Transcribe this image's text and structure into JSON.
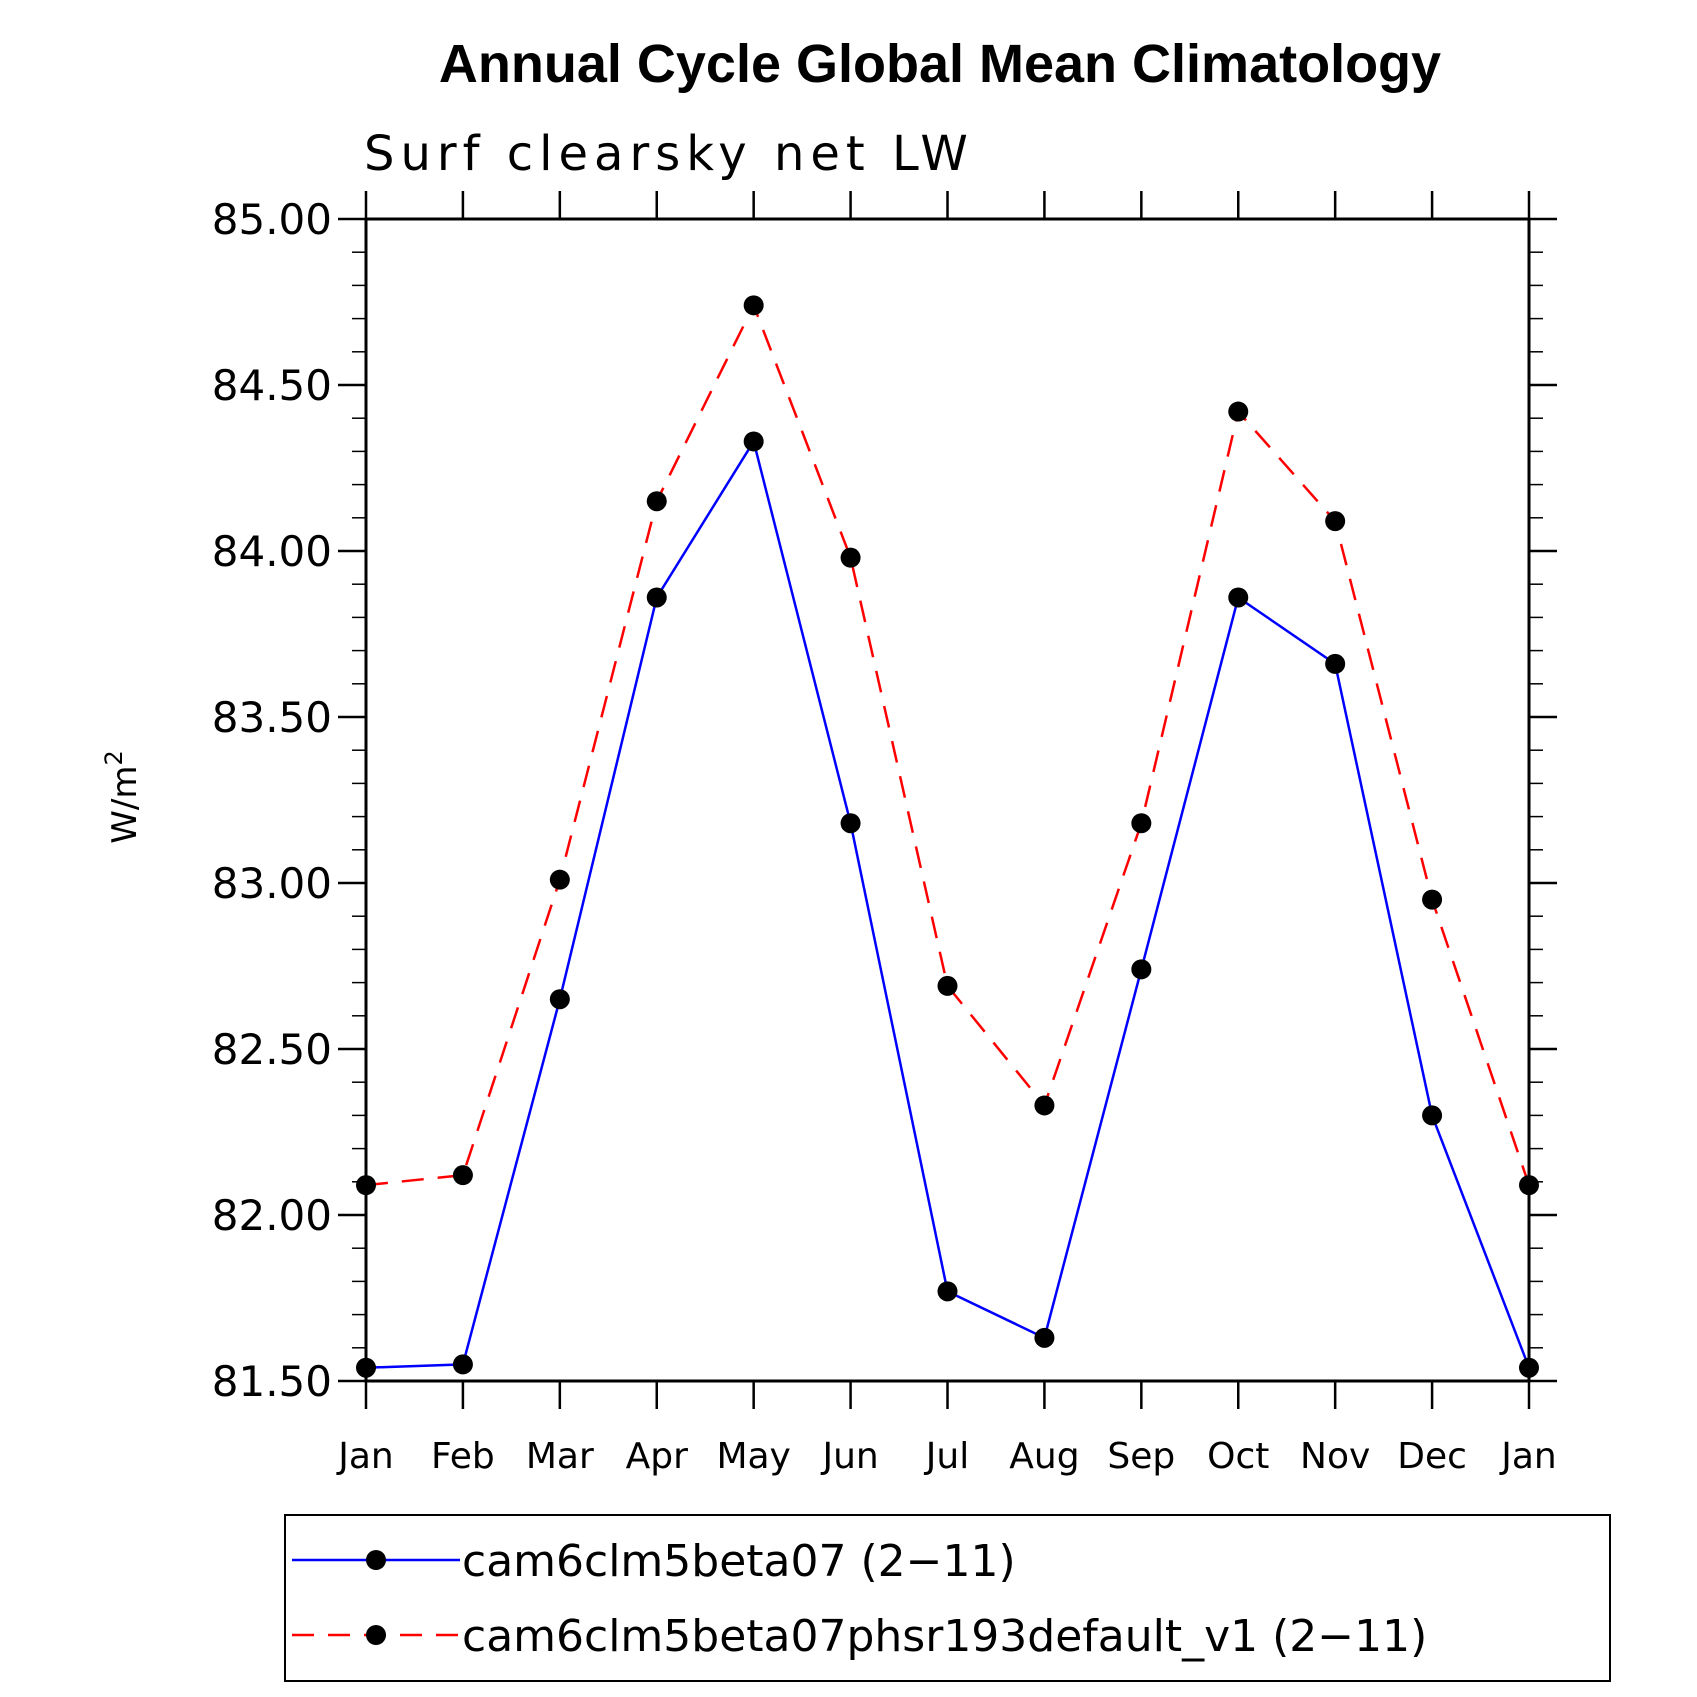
{
  "chart_data": {
    "type": "line",
    "title": "Annual Cycle Global Mean Climatology",
    "subtitle": "Surf clearsky net LW",
    "ylabel": "W/m",
    "ylabel_superscript": "2",
    "xlabel": "",
    "categories": [
      "Jan",
      "Feb",
      "Mar",
      "Apr",
      "May",
      "Jun",
      "Jul",
      "Aug",
      "Sep",
      "Oct",
      "Nov",
      "Dec",
      "Jan"
    ],
    "ylim": [
      81.5,
      85.0
    ],
    "yticks": [
      81.5,
      82.0,
      82.5,
      83.0,
      83.5,
      84.0,
      84.5,
      85.0
    ],
    "ytick_labels": [
      "81.50",
      "82.00",
      "82.50",
      "83.00",
      "83.50",
      "84.00",
      "84.50",
      "85.00"
    ],
    "series": [
      {
        "name": "cam6clm5beta07 (2−11)",
        "color": "#0000ff",
        "dash": "solid",
        "marker": "filled-circle",
        "values": [
          81.54,
          81.55,
          82.65,
          83.86,
          84.33,
          83.18,
          81.77,
          81.63,
          82.74,
          83.86,
          83.66,
          82.3,
          81.54
        ]
      },
      {
        "name": "cam6clm5beta07phsr193default_v1 (2−11)",
        "color": "#ff0000",
        "dash": "dashed",
        "marker": "filled-circle",
        "values": [
          82.09,
          82.12,
          83.01,
          84.15,
          84.74,
          83.98,
          82.69,
          82.33,
          83.18,
          84.42,
          84.09,
          82.95,
          82.09
        ]
      }
    ],
    "legend_position": "bottom"
  }
}
